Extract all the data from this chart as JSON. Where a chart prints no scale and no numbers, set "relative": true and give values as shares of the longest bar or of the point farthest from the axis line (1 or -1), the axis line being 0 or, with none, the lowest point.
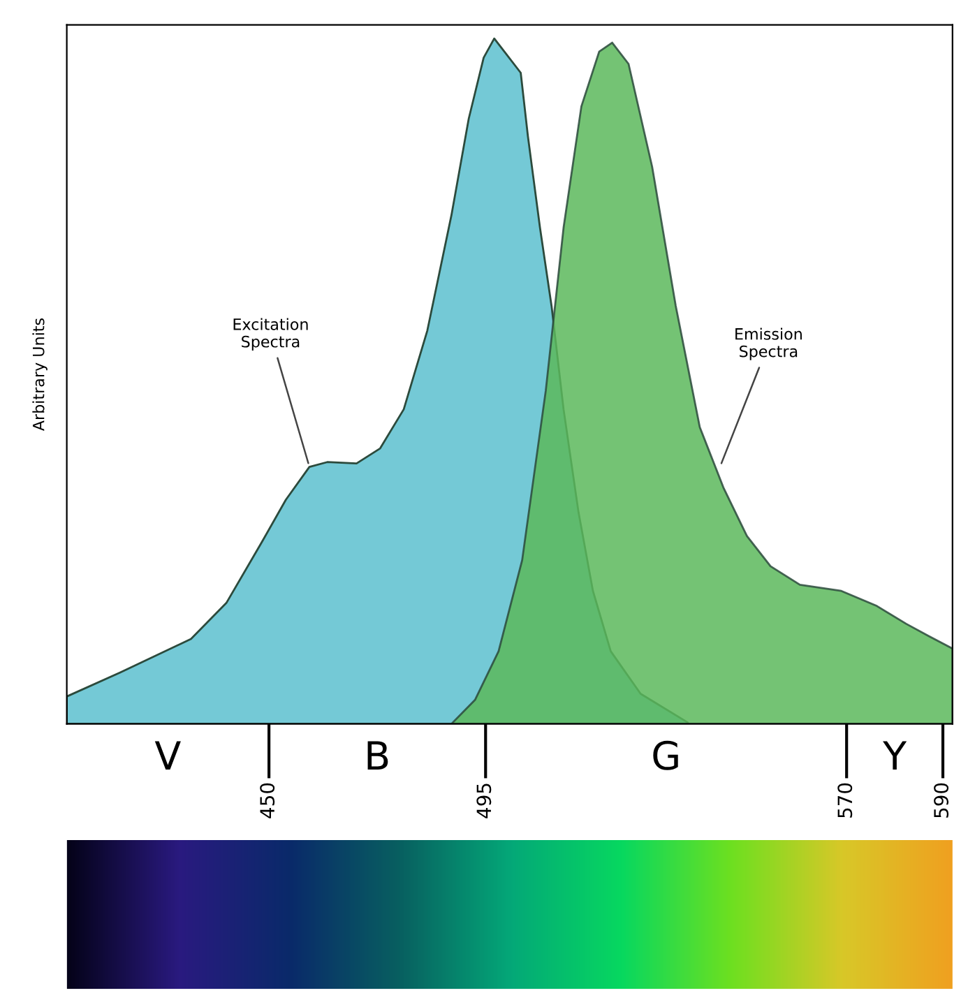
{
  "chart_data": {
    "type": "area",
    "relative": true,
    "ylabel": "Arbitrary Units",
    "xlim": [
      408,
      592
    ],
    "xticks": [
      450,
      495,
      570,
      590
    ],
    "series": [
      {
        "color": "#74c9d6",
        "x": [
          408,
          419.1,
          433.8,
          441.2,
          448.5,
          453.5,
          458.4,
          462.1,
          468.2,
          473.1,
          478.0,
          482.9,
          487.9,
          491.5,
          494.6,
          496.8,
          498.9,
          502.3,
          503.8,
          506.3,
          508.7,
          511.2,
          514.3,
          517.3,
          521.0,
          527.2,
          537.0
        ],
        "values": [
          0.04,
          0.075,
          0.124,
          0.177,
          0.265,
          0.327,
          0.375,
          0.382,
          0.38,
          0.402,
          0.459,
          0.574,
          0.742,
          0.883,
          0.972,
          1.0,
          0.981,
          0.95,
          0.857,
          0.724,
          0.61,
          0.459,
          0.309,
          0.194,
          0.106,
          0.044,
          0.002
        ]
      },
      {
        "color": "#5cb85c",
        "x": [
          487.9,
          492.8,
          497.7,
          502.6,
          507.5,
          511.2,
          514.9,
          518.6,
          521.3,
          524.7,
          529.6,
          534.5,
          539.5,
          544.4,
          549.3,
          554.2,
          560.3,
          568.9,
          576.3,
          582.4,
          587.1,
          592
        ],
        "values": [
          0,
          0.035,
          0.106,
          0.239,
          0.486,
          0.724,
          0.901,
          0.981,
          0.994,
          0.963,
          0.813,
          0.61,
          0.433,
          0.345,
          0.274,
          0.23,
          0.203,
          0.194,
          0.172,
          0.146,
          0.128,
          0.11
        ]
      }
    ],
    "annotations": [
      {
        "text": "Excitation\nSpectra",
        "x": 458.4,
        "y": 0.375
      },
      {
        "text": "Emission\nSpectra",
        "x": 543.7,
        "y": 0.375
      },
      "V",
      "B",
      "G",
      "Y"
    ],
    "grid": false,
    "legend": false
  }
}
